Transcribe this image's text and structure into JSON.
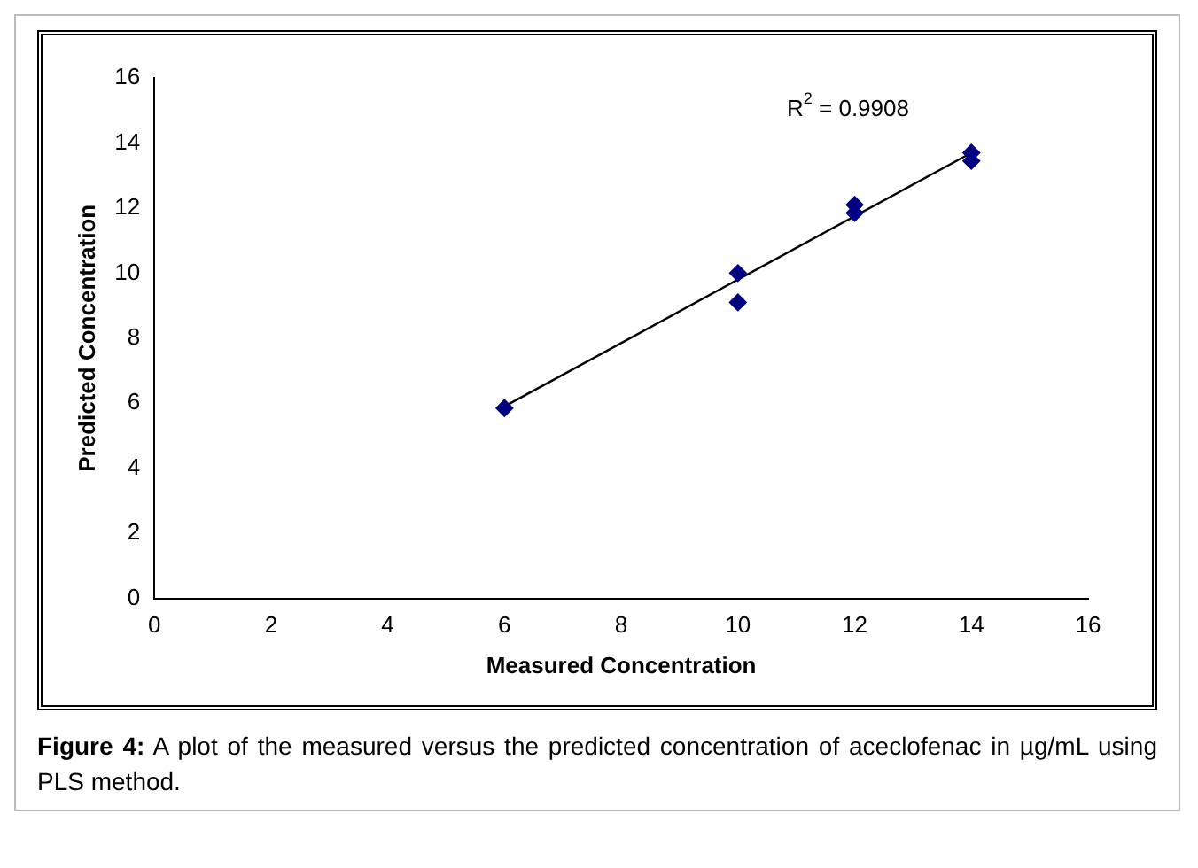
{
  "chart_data": {
    "type": "scatter",
    "xlabel": "Measured Concentration",
    "ylabel": "Predicted Concentration",
    "xlim": [
      0,
      16
    ],
    "xticks": [
      0,
      2,
      4,
      6,
      8,
      10,
      12,
      14,
      16
    ],
    "ylim": [
      0,
      16
    ],
    "yticks": [
      0,
      2,
      4,
      6,
      8,
      10,
      12,
      14,
      16
    ],
    "grid": false,
    "legend": false,
    "marker": "diamond",
    "series": [
      {
        "color": "#000080",
        "x": [
          6,
          10,
          10,
          12,
          12,
          14,
          14
        ],
        "values": [
          5.85,
          10.0,
          9.1,
          12.1,
          11.85,
          13.7,
          13.45
        ]
      },
      {
        "type": "line",
        "color": "#000000",
        "x": [
          6,
          14
        ],
        "values": [
          5.9,
          13.7
        ],
        "marker": "none"
      }
    ],
    "annotations": [
      "R$^{2}$ = 0.9908",
      "Figure 4: A plot of the measured versus the predicted concentration of aceclofenac in µg/mL using PLS method."
    ]
  }
}
